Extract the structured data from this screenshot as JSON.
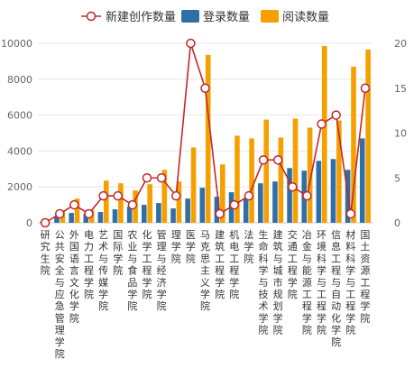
{
  "chart_data": {
    "type": "bar",
    "title": "",
    "xlabel": "",
    "ylabel_left": "",
    "ylabel_right": "",
    "grid": true,
    "legend_position": "top",
    "categories": [
      "研究生院",
      "公共安全与应急管理学院",
      "外国语言文化学院",
      "电力工程学院",
      "艺术与传媒学院",
      "国际学院",
      "农业与食品学院",
      "化学工程学院",
      "管理与经济学院",
      "理学院",
      "医学院",
      "马克思主义学院",
      "建筑工程学院",
      "机电工程学院",
      "法学院",
      "生命科学与技术学院",
      "建筑与城市规划学院",
      "交通工程学院",
      "冶金与能源工程学院",
      "环境科学与工程学院",
      "信息工程与自动化学院",
      "材料科学与工程学院",
      "国土资源工程学院"
    ],
    "yaxis_left": {
      "min": 0,
      "max": 10000,
      "ticks": [
        0,
        2000,
        4000,
        6000,
        8000,
        10000
      ],
      "tick_labels": [
        "0",
        "2000",
        "4000",
        "6000",
        "8000",
        "10000"
      ]
    },
    "yaxis_right": {
      "min": 0,
      "max": 20,
      "ticks": [
        0,
        5,
        10,
        15,
        20
      ],
      "tick_labels": [
        "0",
        "5",
        "10",
        "15",
        "20"
      ]
    },
    "series": [
      {
        "name": "新建创作数量",
        "kind": "line",
        "axis": "right",
        "color": "#c0282d",
        "values": [
          0,
          1,
          2,
          1,
          3,
          3,
          2,
          5,
          5,
          3,
          20,
          15,
          1,
          2,
          3,
          7,
          7,
          4,
          3,
          11,
          12,
          1,
          15
        ]
      },
      {
        "name": "登录数量",
        "kind": "bar",
        "axis": "left",
        "color": "#2f6fa8",
        "values": [
          50,
          350,
          550,
          500,
          600,
          750,
          900,
          1000,
          1100,
          800,
          1350,
          1950,
          1450,
          1700,
          1350,
          2200,
          2300,
          3050,
          2900,
          3450,
          3550,
          2950,
          4700
        ]
      },
      {
        "name": "阅读数量",
        "kind": "bar",
        "axis": "left",
        "color": "#f5a000",
        "values": [
          50,
          650,
          1350,
          700,
          2350,
          2200,
          1800,
          2150,
          2950,
          2300,
          4200,
          9350,
          3250,
          4850,
          4700,
          5750,
          4750,
          5800,
          5300,
          9850,
          5700,
          8700,
          9650
        ]
      }
    ]
  }
}
